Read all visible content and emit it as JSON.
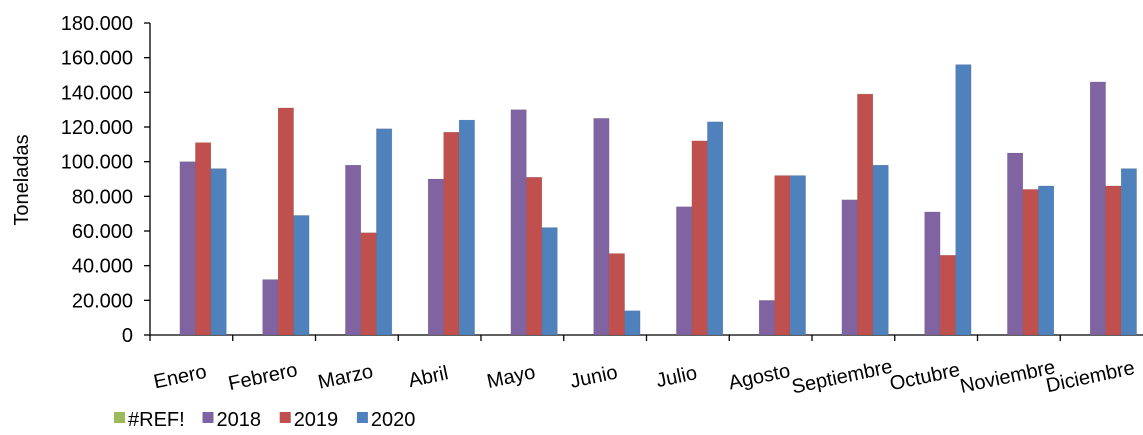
{
  "chart_data": {
    "type": "bar",
    "title": "",
    "xlabel": "",
    "ylabel": "Toneladas",
    "ylim": [
      0,
      180000
    ],
    "yticks": [
      0,
      20000,
      40000,
      60000,
      80000,
      100000,
      120000,
      140000,
      160000,
      180000
    ],
    "ytick_labels": [
      "0",
      "20.000",
      "40.000",
      "60.000",
      "80.000",
      "100.000",
      "120.000",
      "140.000",
      "160.000",
      "180.000"
    ],
    "categories": [
      "Enero",
      "Febrero",
      "Marzo",
      "Abril",
      "Mayo",
      "Junio",
      "Julio",
      "Agosto",
      "Septiembre",
      "Octubre",
      "Noviembre",
      "Diciembre"
    ],
    "grid": false,
    "legend_position": "bottom-left",
    "series": [
      {
        "name": "#REF!",
        "color": "#9BBB59",
        "values": [
          0,
          0,
          0,
          0,
          0,
          0,
          0,
          0,
          0,
          0,
          0,
          0
        ]
      },
      {
        "name": "2018",
        "color": "#8064A2",
        "values": [
          100000,
          32000,
          98000,
          90000,
          130000,
          125000,
          74000,
          20000,
          78000,
          71000,
          105000,
          146000
        ]
      },
      {
        "name": "2019",
        "color": "#C0504D",
        "values": [
          111000,
          131000,
          59000,
          117000,
          91000,
          47000,
          112000,
          92000,
          139000,
          46000,
          84000,
          86000
        ]
      },
      {
        "name": "2020",
        "color": "#4F81BD",
        "values": [
          96000,
          69000,
          119000,
          124000,
          62000,
          14000,
          123000,
          92000,
          98000,
          156000,
          86000,
          96000
        ]
      }
    ]
  }
}
